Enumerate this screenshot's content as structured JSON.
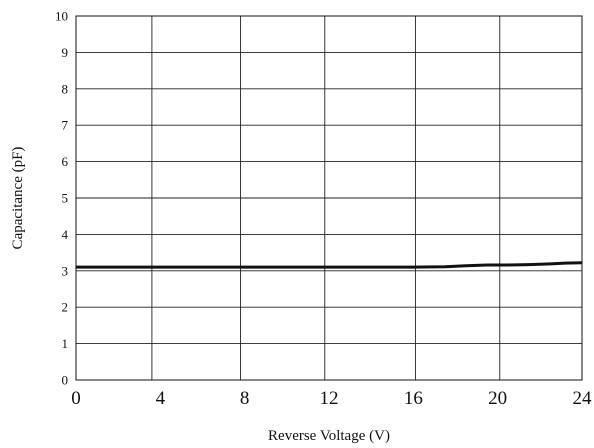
{
  "chart_data": {
    "type": "line",
    "title": "",
    "xlabel": "Reverse Voltage (V)",
    "ylabel": "Capacitance (pF)",
    "xlim": [
      0,
      24
    ],
    "ylim": [
      0,
      10
    ],
    "x_ticks": [
      0,
      4,
      8,
      12,
      16,
      20,
      24
    ],
    "y_ticks": [
      0,
      1,
      2,
      3,
      4,
      5,
      6,
      7,
      8,
      9,
      10
    ],
    "x_tick_labels": [
      "0",
      "4",
      "8",
      "12",
      "16",
      "20",
      "24"
    ],
    "y_tick_labels": [
      "0",
      "1",
      "2",
      "3",
      "4",
      "5",
      "6",
      "7",
      "8",
      "9",
      "10"
    ],
    "x_grid_lines": [
      0,
      3.6,
      7.8,
      11.8,
      16.1,
      20.1,
      24
    ],
    "y_grid_lines": [
      0,
      1,
      2,
      3,
      4,
      5,
      6,
      7,
      8,
      9,
      10
    ],
    "grid": true,
    "series": [
      {
        "x": [
          0,
          4,
          8,
          12,
          16,
          17.5,
          18.5,
          19.5,
          20.5,
          21.5,
          22.5,
          23.2,
          24
        ],
        "y": [
          3.1,
          3.1,
          3.1,
          3.1,
          3.1,
          3.11,
          3.14,
          3.16,
          3.16,
          3.17,
          3.19,
          3.21,
          3.22
        ],
        "color": "#111111"
      }
    ]
  }
}
